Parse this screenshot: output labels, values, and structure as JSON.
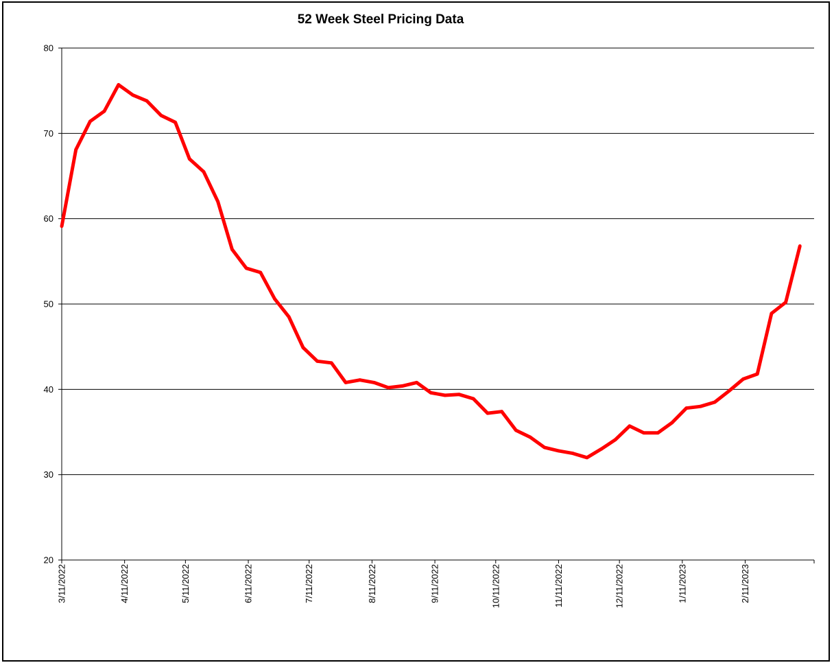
{
  "chart_data": {
    "type": "line",
    "title": "52 Week Steel Pricing Data",
    "xlabel": "",
    "ylabel": "",
    "ylim": [
      20,
      80
    ],
    "yticks": [
      20,
      30,
      40,
      50,
      60,
      70,
      80
    ],
    "grid": true,
    "legend": "none",
    "line_color": "#ff0000",
    "x_start": "3/11/2022",
    "x_tick_labels": [
      "3/11/2022",
      "4/11/2022",
      "5/11/2022",
      "6/11/2022",
      "7/11/2022",
      "8/11/2022",
      "9/11/2022",
      "10/11/2022",
      "11/11/2022",
      "12/11/2022",
      "1/11/2023",
      "2/11/2023"
    ],
    "series": [
      {
        "values": [
          59.1,
          68.1,
          71.4,
          72.6,
          75.7,
          74.5,
          73.8,
          72.1,
          71.3,
          67.0,
          65.5,
          62.0,
          56.4,
          54.2,
          53.7,
          50.6,
          48.5,
          44.9,
          43.3,
          43.1,
          40.8,
          41.1,
          40.8,
          40.2,
          40.4,
          40.8,
          39.6,
          39.3,
          39.4,
          38.9,
          37.2,
          37.4,
          35.2,
          34.4,
          33.2,
          32.8,
          32.5,
          32.0,
          33.0,
          34.1,
          35.7,
          34.9,
          34.9,
          36.1,
          37.8,
          38.0,
          38.5,
          39.8,
          41.2,
          41.8,
          48.9,
          50.2,
          56.8
        ]
      }
    ]
  }
}
